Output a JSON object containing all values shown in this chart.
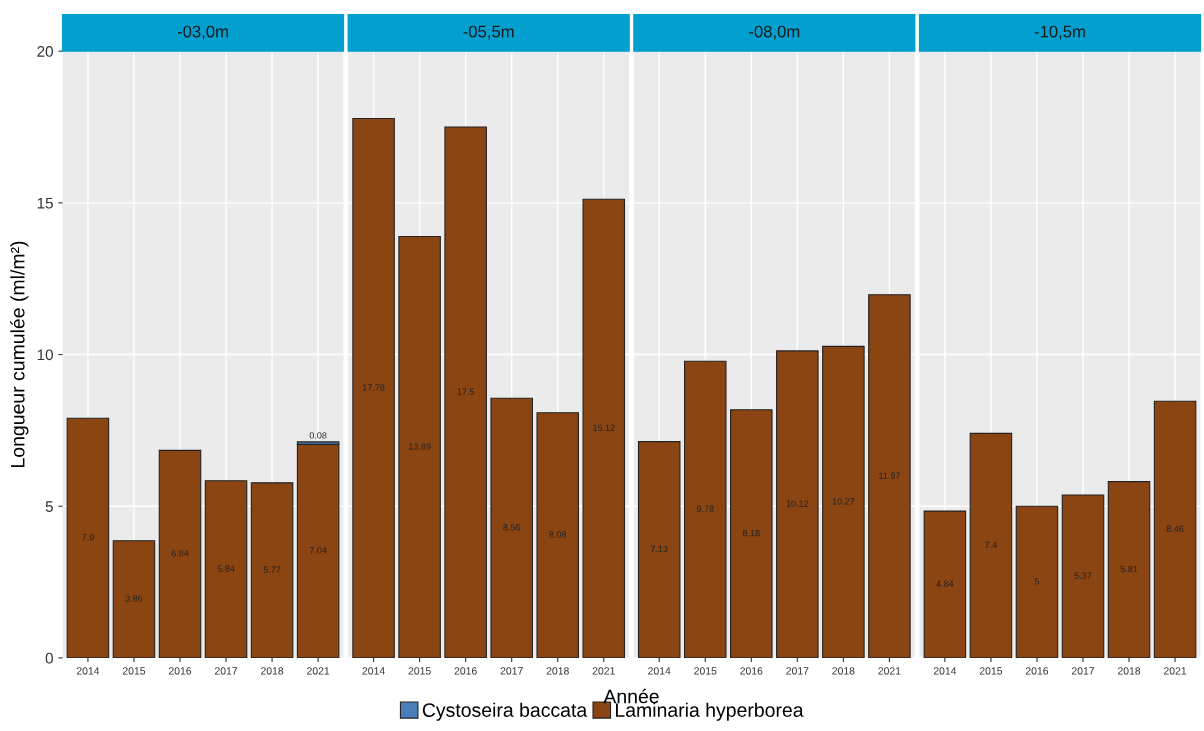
{
  "chart_data": [
    {
      "type": "bar",
      "title": "-03,0m",
      "ylabel": "Longueur cumulée (ml/m²)",
      "categories": [
        "2014",
        "2015",
        "2016",
        "2017",
        "2018",
        "2021"
      ],
      "stacked": true,
      "ylim": [
        0,
        20
      ],
      "yticks": [
        0,
        5,
        10,
        15,
        20
      ],
      "grid": true,
      "legend": "bottom",
      "data_labels": true,
      "series": [
        {
          "name": "Laminaria hyperborea",
          "color": "#8b4513",
          "values": [
            7.9,
            3.86,
            6.84,
            5.84,
            5.77,
            7.04
          ]
        },
        {
          "name": "Cystoseira baccata",
          "color": "#4a7ebb",
          "values": [
            null,
            null,
            null,
            null,
            null,
            0.08
          ]
        }
      ]
    },
    {
      "type": "bar",
      "title": "-05,5m",
      "xlabel": "Année",
      "categories": [
        "2014",
        "2015",
        "2016",
        "2017",
        "2018",
        "2021"
      ],
      "stacked": true,
      "ylim": [
        0,
        20
      ],
      "yticks": [
        0,
        5,
        10,
        15,
        20
      ],
      "grid": true,
      "tick_labels": "x",
      "data_labels": true,
      "series": [
        {
          "name": "Laminaria hyperborea",
          "color": "#8b4513",
          "values": [
            17.78,
            13.89,
            17.5,
            8.56,
            8.08,
            15.12
          ]
        }
      ]
    },
    {
      "type": "bar",
      "title": "-08,0m",
      "categories": [
        "2014",
        "2015",
        "2016",
        "2017",
        "2018",
        "2021"
      ],
      "stacked": true,
      "ylim": [
        0,
        20
      ],
      "yticks": [
        0,
        5,
        10,
        15,
        20
      ],
      "grid": true,
      "tick_labels": "x",
      "data_labels": true,
      "series": [
        {
          "name": "Laminaria hyperborea",
          "color": "#8b4513",
          "values": [
            7.13,
            9.78,
            8.18,
            10.12,
            10.27,
            11.97
          ]
        }
      ]
    },
    {
      "type": "bar",
      "title": "-10,5m",
      "categories": [
        "2014",
        "2015",
        "2016",
        "2017",
        "2018",
        "2021"
      ],
      "stacked": true,
      "ylim": [
        0,
        20
      ],
      "yticks": [
        0,
        5,
        10,
        15,
        20
      ],
      "grid": true,
      "tick_labels": "x",
      "data_labels": true,
      "series": [
        {
          "name": "Laminaria hyperborea",
          "color": "#8b4513",
          "values": [
            4.84,
            7.4,
            5,
            5.37,
            5.81,
            8.46
          ]
        }
      ]
    }
  ]
}
